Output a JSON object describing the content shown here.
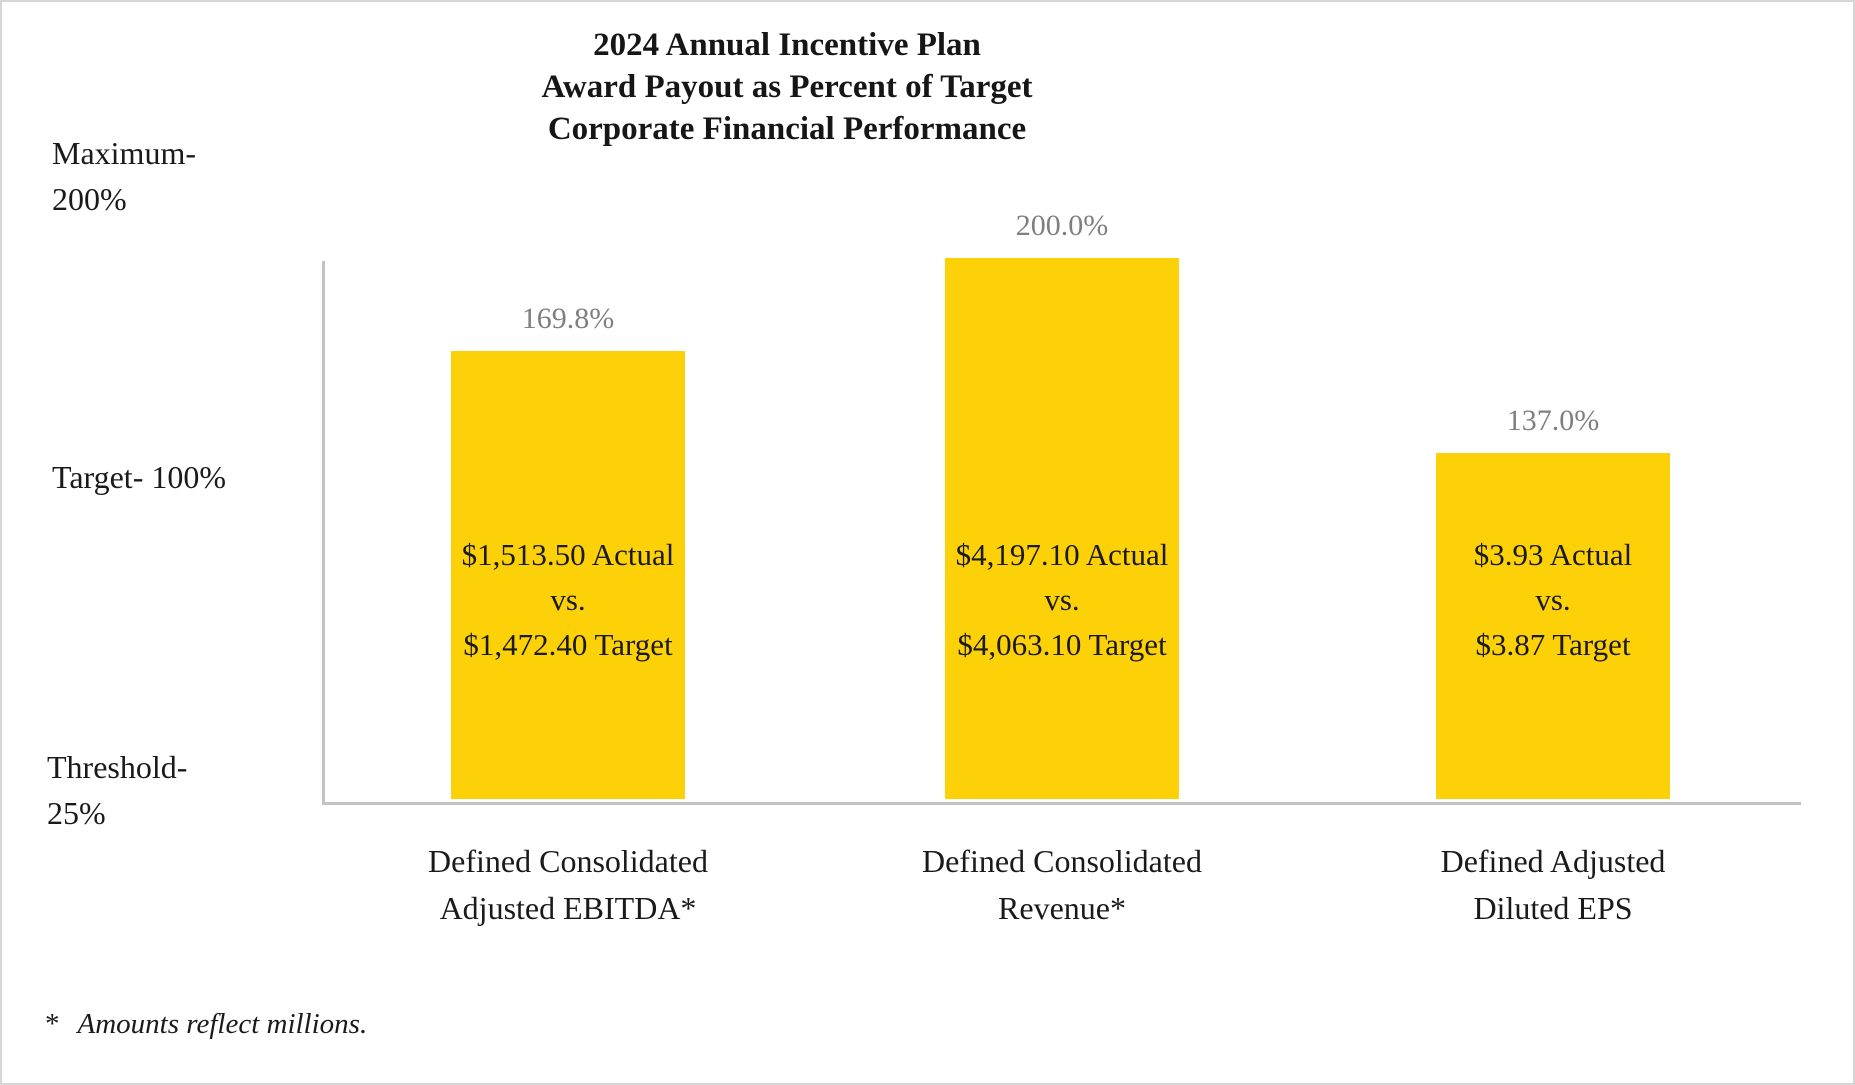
{
  "title": {
    "line1": "2024 Annual Incentive Plan",
    "line2": "Award Payout as Percent of Target",
    "line3": "Corporate Financial Performance"
  },
  "y_axis": {
    "maximum_line1": "Maximum-",
    "maximum_line2": "200%",
    "target": "Target- 100%",
    "threshold_line1": "Threshold-",
    "threshold_line2": "25%"
  },
  "bars": [
    {
      "value_label": "169.8%",
      "value_pct": 169.8,
      "inner_line1": "$1,513.50 Actual",
      "inner_line2": "vs.",
      "inner_line3": "$1,472.40 Target",
      "category_line1": "Defined Consolidated",
      "category_line2": "Adjusted EBITDA*"
    },
    {
      "value_label": "200.0%",
      "value_pct": 200.0,
      "inner_line1": "$4,197.10 Actual",
      "inner_line2": "vs.",
      "inner_line3": "$4,063.10 Target",
      "category_line1": "Defined Consolidated",
      "category_line2": "Revenue*"
    },
    {
      "value_label": "137.0%",
      "value_pct": 137.0,
      "inner_line1": "$3.93 Actual",
      "inner_line2": "vs.",
      "inner_line3": "$3.87 Target",
      "category_line1": "Defined Adjusted",
      "category_line2": "Diluted EPS"
    }
  ],
  "footnote": {
    "marker": "*",
    "text": "Amounts reflect millions."
  },
  "colors": {
    "bar": "#FDD108",
    "value_label": "#7F7F7F",
    "axis_line": "#C3C3C3",
    "text": "#1A1A1A"
  },
  "chart_data": {
    "type": "bar",
    "title": "2024 Annual Incentive Plan Award Payout as Percent of Target Corporate Financial Performance",
    "categories": [
      "Defined Consolidated Adjusted EBITDA*",
      "Defined Consolidated Revenue*",
      "Defined Adjusted Diluted EPS"
    ],
    "values": [
      169.8,
      200.0,
      137.0
    ],
    "data_labels": [
      "169.8%",
      "200.0%",
      "137.0%"
    ],
    "bar_annotations": [
      "$1,513.50 Actual vs. $1,472.40 Target",
      "$4,197.10 Actual vs. $4,063.10 Target",
      "$3.93 Actual vs. $3.87 Target"
    ],
    "ylabel": "Award Payout as Percent of Target",
    "xlabel": "",
    "ylim": [
      25,
      200
    ],
    "axis_markers": [
      {
        "label": "Maximum",
        "value": 200
      },
      {
        "label": "Target",
        "value": 100
      },
      {
        "label": "Threshold",
        "value": 25
      }
    ],
    "grid": false,
    "legend": false,
    "bar_color": "#FDD108",
    "footnote": "* Amounts reflect millions."
  }
}
